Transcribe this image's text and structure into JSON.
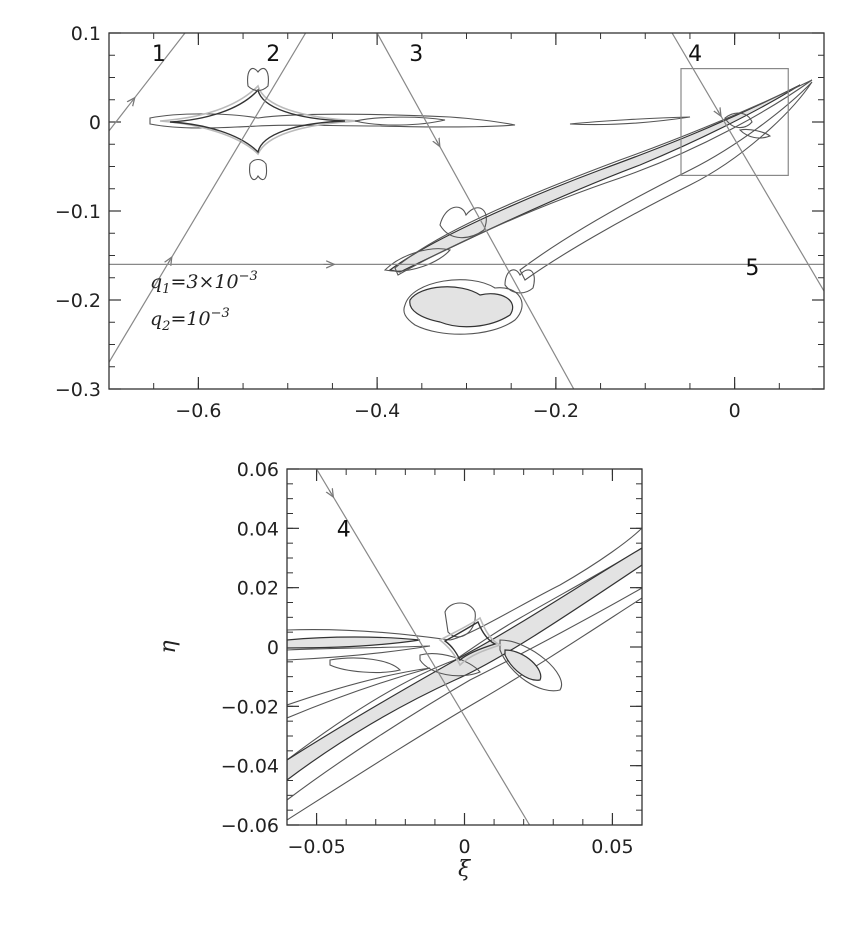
{
  "chart_data": [
    {
      "type": "scatter",
      "title": "",
      "xlabel": "",
      "ylabel": "",
      "xlim": [
        -0.7,
        0.1
      ],
      "ylim": [
        -0.3,
        0.1
      ],
      "x_ticks": [
        -0.6,
        -0.4,
        -0.2,
        0
      ],
      "x_tick_labels": [
        "−0.6",
        "−0.4",
        "−0.2",
        "0"
      ],
      "y_ticks": [
        0.1,
        0,
        -0.1,
        -0.2,
        -0.3
      ],
      "y_tick_labels": [
        "0.1",
        "0",
        "−0.1",
        "−0.2",
        "−0.3"
      ],
      "annotations": {
        "q1": "q",
        "q1_sub": "1",
        "q1_value": "=3×10",
        "q1_exp": "−3",
        "q2": "q",
        "q2_sub": "2",
        "q2_value": "=10",
        "q2_exp": "−3"
      },
      "trajectories": [
        {
          "label": "1",
          "x": [
            -0.7,
            -0.615
          ],
          "y": [
            -0.01,
            0.1
          ]
        },
        {
          "label": "2",
          "x": [
            -0.7,
            -0.48
          ],
          "y": [
            -0.27,
            0.1
          ]
        },
        {
          "label": "3",
          "x": [
            -0.4,
            -0.18
          ],
          "y": [
            0.1,
            -0.3
          ]
        },
        {
          "label": "4",
          "x": [
            -0.07,
            0.1
          ],
          "y": [
            0.1,
            -0.19
          ]
        },
        {
          "label": "5",
          "x": [
            -0.7,
            0.1
          ],
          "y": [
            -0.16,
            -0.16
          ]
        }
      ],
      "zoom_box": {
        "x": [
          -0.06,
          0.06
        ],
        "y": [
          -0.06,
          0.06
        ]
      }
    },
    {
      "type": "scatter",
      "title": "",
      "xlabel": "ξ",
      "ylabel": "η",
      "xlim": [
        -0.06,
        0.06
      ],
      "ylim": [
        -0.06,
        0.06
      ],
      "x_ticks": [
        -0.05,
        0,
        0.05
      ],
      "x_tick_labels": [
        "−0.05",
        "0",
        "0.05"
      ],
      "y_ticks": [
        0.06,
        0.04,
        0.02,
        0,
        -0.02,
        -0.04,
        -0.06
      ],
      "y_tick_labels": [
        "0.06",
        "0.04",
        "0.02",
        "0",
        "−0.02",
        "−0.04",
        "−0.06"
      ],
      "trajectories": [
        {
          "label": "4",
          "x": [
            -0.05,
            0.022
          ],
          "y": [
            0.06,
            -0.06
          ]
        }
      ]
    }
  ]
}
